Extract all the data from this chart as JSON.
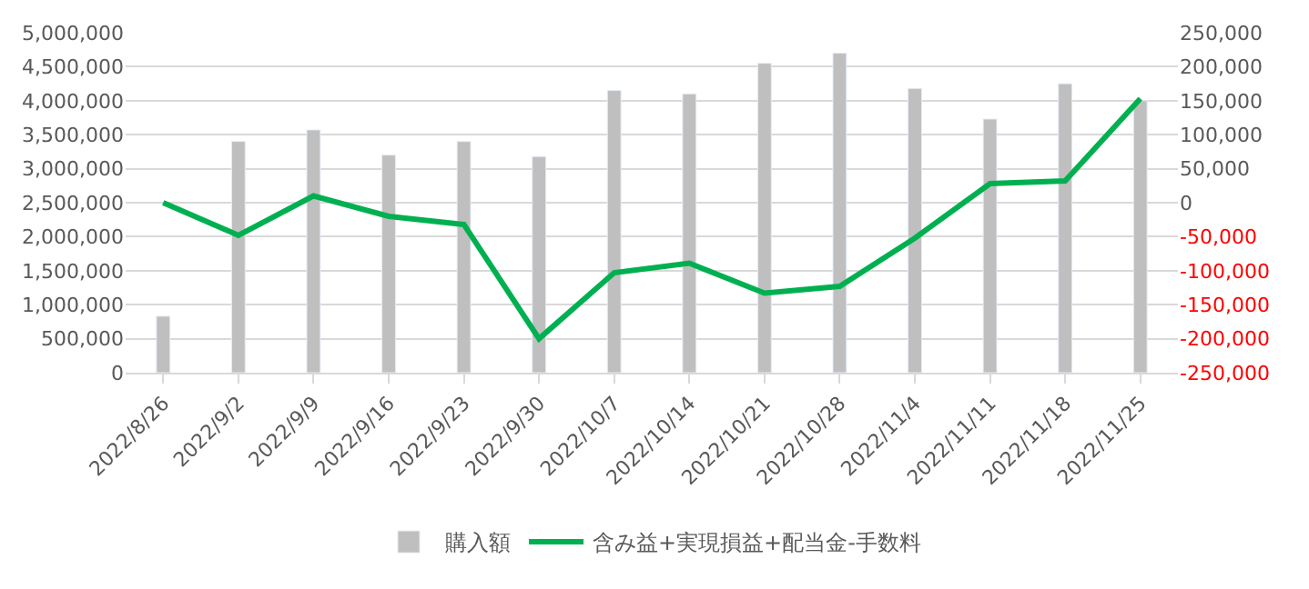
{
  "chart_data": {
    "type": "bar",
    "categories": [
      "2022/8/26",
      "2022/9/2",
      "2022/9/9",
      "2022/9/16",
      "2022/9/23",
      "2022/9/30",
      "2022/10/7",
      "2022/10/14",
      "2022/10/21",
      "2022/10/28",
      "2022/11/4",
      "2022/11/11",
      "2022/11/18",
      "2022/11/25"
    ],
    "series": [
      {
        "name": "購入額",
        "color": "#bfbfbf",
        "values": [
          830000,
          3400000,
          3570000,
          3200000,
          3400000,
          3180000,
          4150000,
          4100000,
          4550000,
          4700000,
          4180000,
          3730000,
          4250000,
          4000000
        ]
      },
      {
        "name": "含み益+実現損益+配当金-手数料",
        "type": "line",
        "axis": "y2",
        "color": "#00b050",
        "values": [
          0,
          -48000,
          10000,
          -20000,
          -32000,
          -200000,
          -103000,
          -89000,
          -133000,
          -123000,
          -52000,
          28000,
          32000,
          153000
        ]
      }
    ],
    "ylim": [
      0,
      5000000
    ],
    "yticks": [
      {
        "value": 0,
        "label": "0"
      },
      {
        "value": 500000,
        "label": "500,000"
      },
      {
        "value": 1000000,
        "label": "1,000,000"
      },
      {
        "value": 1500000,
        "label": "1,500,000"
      },
      {
        "value": 2000000,
        "label": "2,000,000"
      },
      {
        "value": 2500000,
        "label": "2,500,000"
      },
      {
        "value": 3000000,
        "label": "3,000,000"
      },
      {
        "value": 3500000,
        "label": "3,500,000"
      },
      {
        "value": 4000000,
        "label": "4,000,000"
      },
      {
        "value": 4500000,
        "label": "4,500,000"
      },
      {
        "value": 5000000,
        "label": "5,000,000"
      }
    ],
    "y2lim": [
      -250000,
      250000
    ],
    "y2ticks": [
      {
        "value": -250000,
        "label": "-250,000"
      },
      {
        "value": -200000,
        "label": "-200,000"
      },
      {
        "value": -150000,
        "label": "-150,000"
      },
      {
        "value": -100000,
        "label": "-100,000"
      },
      {
        "value": -50000,
        "label": "-50,000"
      },
      {
        "value": 0,
        "label": "0"
      },
      {
        "value": 50000,
        "label": "50,000"
      },
      {
        "value": 100000,
        "label": "100,000"
      },
      {
        "value": 150000,
        "label": "150,000"
      },
      {
        "value": 200000,
        "label": "200,000"
      },
      {
        "value": 250000,
        "label": "250,000"
      }
    ],
    "grid": "y",
    "legend": "bottom",
    "marker": "none",
    "line_style": "solid"
  }
}
